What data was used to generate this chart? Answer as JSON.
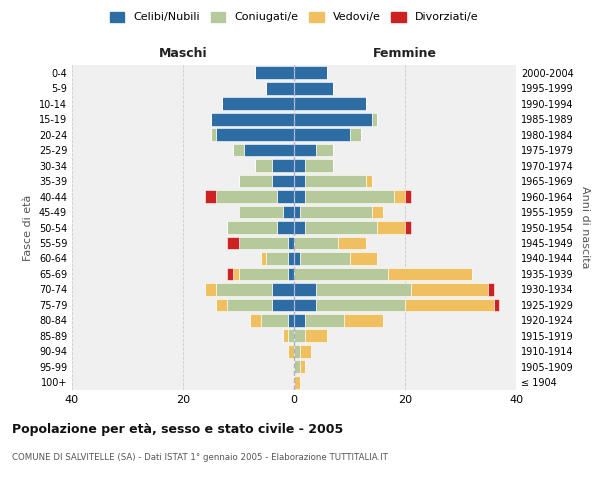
{
  "age_groups": [
    "100+",
    "95-99",
    "90-94",
    "85-89",
    "80-84",
    "75-79",
    "70-74",
    "65-69",
    "60-64",
    "55-59",
    "50-54",
    "45-49",
    "40-44",
    "35-39",
    "30-34",
    "25-29",
    "20-24",
    "15-19",
    "10-14",
    "5-9",
    "0-4"
  ],
  "birth_years": [
    "≤ 1904",
    "1905-1909",
    "1910-1914",
    "1915-1919",
    "1920-1924",
    "1925-1929",
    "1930-1934",
    "1935-1939",
    "1940-1944",
    "1945-1949",
    "1950-1954",
    "1955-1959",
    "1960-1964",
    "1965-1969",
    "1970-1974",
    "1975-1979",
    "1980-1984",
    "1985-1989",
    "1990-1994",
    "1995-1999",
    "2000-2004"
  ],
  "colors": {
    "celibe": "#2e6da4",
    "coniugato": "#b5c99a",
    "vedovo": "#f0c060",
    "divorziato": "#cc2222"
  },
  "maschi": {
    "celibe": [
      0,
      0,
      0,
      0,
      1,
      4,
      4,
      1,
      1,
      1,
      3,
      2,
      3,
      4,
      4,
      9,
      14,
      15,
      13,
      5,
      7
    ],
    "coniugato": [
      0,
      0,
      0,
      1,
      5,
      8,
      10,
      9,
      4,
      9,
      9,
      8,
      11,
      6,
      3,
      2,
      1,
      0,
      0,
      0,
      0
    ],
    "vedovo": [
      0,
      0,
      1,
      1,
      2,
      2,
      2,
      1,
      1,
      0,
      0,
      0,
      0,
      0,
      0,
      0,
      0,
      0,
      0,
      0,
      0
    ],
    "divorziato": [
      0,
      0,
      0,
      0,
      0,
      0,
      0,
      1,
      0,
      2,
      0,
      0,
      2,
      0,
      0,
      0,
      0,
      0,
      0,
      0,
      0
    ]
  },
  "femmine": {
    "celibe": [
      0,
      0,
      0,
      0,
      2,
      4,
      4,
      0,
      1,
      0,
      2,
      1,
      2,
      2,
      2,
      4,
      10,
      14,
      13,
      7,
      6
    ],
    "coniugato": [
      0,
      1,
      1,
      2,
      7,
      16,
      17,
      17,
      9,
      8,
      13,
      13,
      16,
      11,
      5,
      3,
      2,
      1,
      0,
      0,
      0
    ],
    "vedovo": [
      1,
      1,
      2,
      4,
      7,
      16,
      14,
      15,
      5,
      5,
      5,
      2,
      2,
      1,
      0,
      0,
      0,
      0,
      0,
      0,
      0
    ],
    "divorziato": [
      0,
      0,
      0,
      0,
      0,
      1,
      1,
      0,
      0,
      0,
      1,
      0,
      1,
      0,
      0,
      0,
      0,
      0,
      0,
      0,
      0
    ]
  },
  "xlim": 40,
  "title": "Popolazione per età, sesso e stato civile - 2005",
  "subtitle": "COMUNE DI SALVITELLE (SA) - Dati ISTAT 1° gennaio 2005 - Elaborazione TUTTITALIA.IT",
  "xlabel_left": "Maschi",
  "xlabel_right": "Femmine",
  "ylabel_left": "Fasce di età",
  "ylabel_right": "Anni di nascita",
  "legend_labels": [
    "Celibi/Nubili",
    "Coniugati/e",
    "Vedovi/e",
    "Divorziati/e"
  ],
  "background_color": "#ffffff",
  "grid_color": "#cccccc",
  "ax_bg": "#f0f0f0"
}
